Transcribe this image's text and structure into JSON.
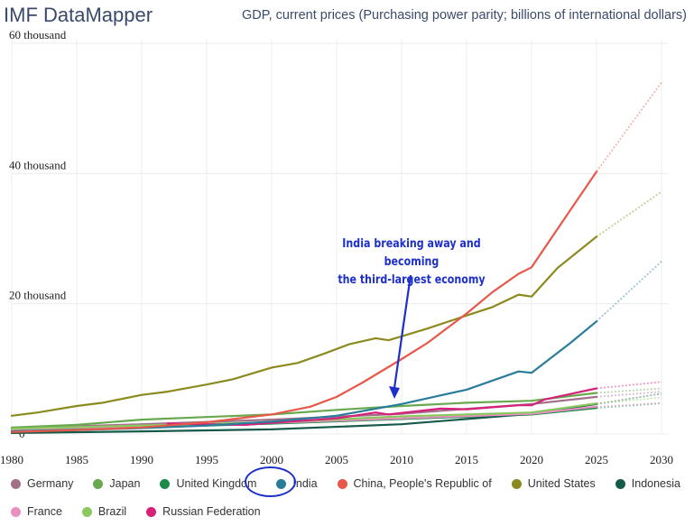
{
  "brand": "IMF DataMapper",
  "chart_data": {
    "type": "line",
    "title": "GDP, current prices (Purchasing power parity; billions of international dollars)",
    "xlabel": "",
    "ylabel": "",
    "xlim": [
      1980,
      2030
    ],
    "ylim": [
      0,
      60000
    ],
    "y_ticks": [
      {
        "value": 0,
        "label": "0"
      },
      {
        "value": 20000,
        "label": "20 thousand"
      },
      {
        "value": 40000,
        "label": "40 thousand"
      },
      {
        "value": 60000,
        "label": "60 thousand"
      }
    ],
    "x_ticks": [
      1980,
      1985,
      1990,
      1995,
      2000,
      2005,
      2010,
      2015,
      2020,
      2025,
      2030
    ],
    "grid": true,
    "legend_position": "bottom",
    "projection_start": 2025,
    "series": [
      {
        "name": "Germany",
        "color": "#a3708a",
        "points": [
          [
            1980,
            900
          ],
          [
            1990,
            1500
          ],
          [
            2000,
            2200
          ],
          [
            2010,
            3100
          ],
          [
            2020,
            4600
          ],
          [
            2025,
            5700
          ],
          [
            2030,
            6500
          ]
        ]
      },
      {
        "name": "Japan",
        "color": "#6aa84f",
        "points": [
          [
            1980,
            1000
          ],
          [
            1985,
            1400
          ],
          [
            1990,
            2200
          ],
          [
            1995,
            2600
          ],
          [
            2000,
            3000
          ],
          [
            2005,
            3700
          ],
          [
            2010,
            4300
          ],
          [
            2015,
            4800
          ],
          [
            2020,
            5100
          ],
          [
            2025,
            6300
          ],
          [
            2030,
            7000
          ]
        ]
      },
      {
        "name": "United Kingdom",
        "color": "#1b8a4a",
        "points": [
          [
            1980,
            500
          ],
          [
            1990,
            1000
          ],
          [
            2000,
            1600
          ],
          [
            2010,
            2300
          ],
          [
            2020,
            3000
          ],
          [
            2025,
            4000
          ],
          [
            2030,
            4700
          ]
        ]
      },
      {
        "name": "India",
        "color": "#2a7c9a",
        "points": [
          [
            1980,
            400
          ],
          [
            1985,
            600
          ],
          [
            1990,
            900
          ],
          [
            1995,
            1300
          ],
          [
            2000,
            1900
          ],
          [
            2005,
            2800
          ],
          [
            2010,
            4600
          ],
          [
            2015,
            6800
          ],
          [
            2019,
            9600
          ],
          [
            2020,
            9400
          ],
          [
            2023,
            14000
          ],
          [
            2025,
            17300
          ],
          [
            2030,
            26500
          ]
        ]
      },
      {
        "name": "China, People's Republic of",
        "color": "#e8584a",
        "points": [
          [
            1980,
            300
          ],
          [
            1985,
            600
          ],
          [
            1990,
            1000
          ],
          [
            1995,
            1800
          ],
          [
            2000,
            3000
          ],
          [
            2003,
            4200
          ],
          [
            2005,
            5700
          ],
          [
            2007,
            7900
          ],
          [
            2010,
            11500
          ],
          [
            2012,
            14000
          ],
          [
            2015,
            18500
          ],
          [
            2017,
            21800
          ],
          [
            2019,
            24600
          ],
          [
            2020,
            25600
          ],
          [
            2022,
            31500
          ],
          [
            2025,
            40300
          ],
          [
            2030,
            54000
          ]
        ]
      },
      {
        "name": "United States",
        "color": "#8c8a1e",
        "points": [
          [
            1980,
            2800
          ],
          [
            1982,
            3300
          ],
          [
            1985,
            4300
          ],
          [
            1987,
            4800
          ],
          [
            1990,
            6000
          ],
          [
            1992,
            6500
          ],
          [
            1995,
            7600
          ],
          [
            1997,
            8400
          ],
          [
            2000,
            10200
          ],
          [
            2002,
            10900
          ],
          [
            2004,
            12300
          ],
          [
            2006,
            13800
          ],
          [
            2008,
            14700
          ],
          [
            2009,
            14400
          ],
          [
            2010,
            15000
          ],
          [
            2012,
            16200
          ],
          [
            2015,
            18200
          ],
          [
            2017,
            19500
          ],
          [
            2019,
            21400
          ],
          [
            2020,
            21100
          ],
          [
            2022,
            25500
          ],
          [
            2025,
            30300
          ],
          [
            2030,
            37200
          ]
        ]
      },
      {
        "name": "Indonesia",
        "color": "#165a4a",
        "points": [
          [
            1980,
            150
          ],
          [
            1990,
            400
          ],
          [
            2000,
            700
          ],
          [
            2010,
            1500
          ],
          [
            2020,
            3100
          ],
          [
            2025,
            4600
          ],
          [
            2030,
            6200
          ]
        ]
      },
      {
        "name": "France",
        "color": "#e890c0",
        "points": [
          [
            1980,
            700
          ],
          [
            1990,
            1200
          ],
          [
            2000,
            1700
          ],
          [
            2010,
            2400
          ],
          [
            2020,
            3100
          ],
          [
            2025,
            4200
          ],
          [
            2030,
            4800
          ]
        ]
      },
      {
        "name": "Brazil",
        "color": "#8cc860",
        "points": [
          [
            1980,
            800
          ],
          [
            1990,
            1300
          ],
          [
            2000,
            1800
          ],
          [
            2010,
            2700
          ],
          [
            2020,
            3300
          ],
          [
            2025,
            4700
          ],
          [
            2030,
            5600
          ]
        ]
      },
      {
        "name": "Russian Federation",
        "color": "#d6217a",
        "points": [
          [
            1992,
            1600
          ],
          [
            1995,
            1500
          ],
          [
            1998,
            1400
          ],
          [
            2000,
            1700
          ],
          [
            2005,
            2400
          ],
          [
            2008,
            3300
          ],
          [
            2009,
            3000
          ],
          [
            2013,
            3900
          ],
          [
            2015,
            3800
          ],
          [
            2019,
            4400
          ],
          [
            2020,
            4400
          ],
          [
            2021,
            5300
          ],
          [
            2025,
            7000
          ],
          [
            2030,
            8000
          ]
        ]
      }
    ]
  },
  "annotation": {
    "line1": "India breaking away and becoming",
    "line2": "the third-largest economy"
  },
  "legend": {
    "row1": [
      "Germany",
      "Japan",
      "United Kingdom",
      "India",
      "China, People's Republic of",
      "United States",
      "Indonesia"
    ],
    "row2": [
      "France",
      "Brazil",
      "Russian Federation"
    ]
  }
}
